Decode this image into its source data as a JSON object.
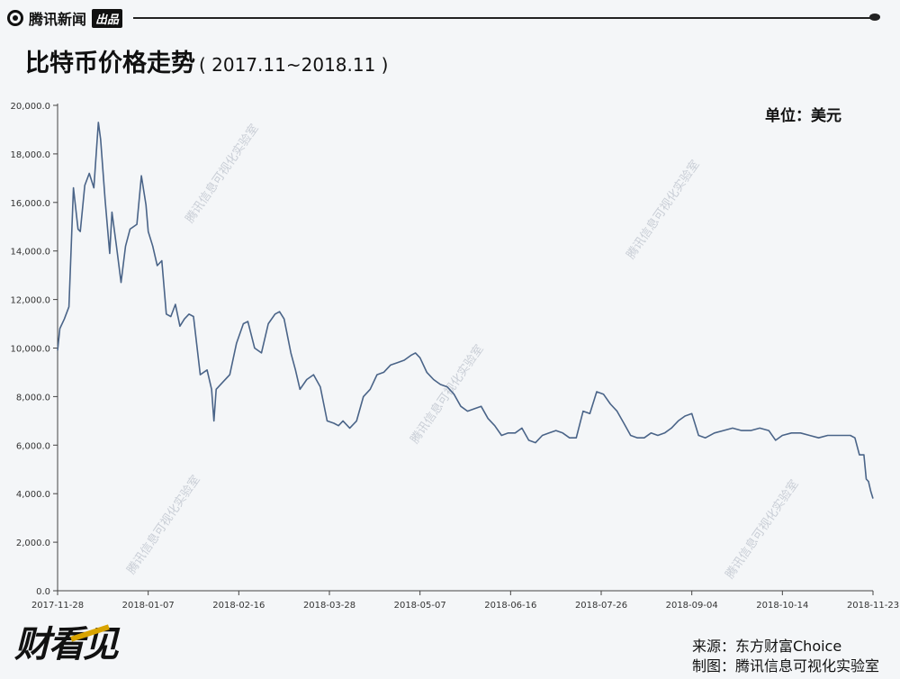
{
  "header": {
    "brand": "腾讯新闻",
    "brand_tag": "出品"
  },
  "title": {
    "main": "比特币价格走势",
    "sub": "( 2017.11~2018.11 )"
  },
  "unit_label": "单位：美元",
  "watermark_text": "腾讯信息可视化实验室",
  "footer": {
    "logo": "财看见",
    "source": "来源：东方财富Choice",
    "credit": "制图：腾讯信息可视化实验室"
  },
  "colors": {
    "line": "#4a6488",
    "axis": "#444444",
    "background": "#f4f6f8"
  },
  "chart_data": {
    "type": "line",
    "title": "比特币价格走势",
    "ylabel": "单位：美元",
    "ylim": [
      0,
      20000
    ],
    "yticks": [
      0,
      2000,
      4000,
      6000,
      8000,
      10000,
      12000,
      14000,
      16000,
      18000,
      20000
    ],
    "ytick_labels": [
      "0.0",
      "2,000.0",
      "4,000.0",
      "6,000.0",
      "8,000.0",
      "10,000.0",
      "12,000.0",
      "14,000.0",
      "16,000.0",
      "18,000.0",
      "20,000.0"
    ],
    "xlim": [
      "2017-11-28",
      "2018-11-23"
    ],
    "xticks": [
      "2017-11-28",
      "2018-01-07",
      "2018-02-16",
      "2018-03-28",
      "2018-05-07",
      "2018-06-16",
      "2018-07-26",
      "2018-09-04",
      "2018-10-14",
      "2018-11-23"
    ],
    "grid": false,
    "series": [
      {
        "x": [
          "2017-11-28",
          "2017-11-29",
          "2017-12-01",
          "2017-12-03",
          "2017-12-05",
          "2017-12-07",
          "2017-12-08",
          "2017-12-10",
          "2017-12-12",
          "2017-12-14",
          "2017-12-16",
          "2017-12-17",
          "2017-12-19",
          "2017-12-21",
          "2017-12-22",
          "2017-12-24",
          "2017-12-26",
          "2017-12-28",
          "2017-12-30",
          "2018-01-02",
          "2018-01-04",
          "2018-01-06",
          "2018-01-07",
          "2018-01-09",
          "2018-01-11",
          "2018-01-13",
          "2018-01-15",
          "2018-01-17",
          "2018-01-19",
          "2018-01-21",
          "2018-01-23",
          "2018-01-25",
          "2018-01-27",
          "2018-01-30",
          "2018-02-02",
          "2018-02-04",
          "2018-02-05",
          "2018-02-06",
          "2018-02-09",
          "2018-02-12",
          "2018-02-15",
          "2018-02-18",
          "2018-02-20",
          "2018-02-23",
          "2018-02-26",
          "2018-03-01",
          "2018-03-04",
          "2018-03-06",
          "2018-03-08",
          "2018-03-11",
          "2018-03-13",
          "2018-03-15",
          "2018-03-18",
          "2018-03-21",
          "2018-03-24",
          "2018-03-27",
          "2018-03-30",
          "2018-04-01",
          "2018-04-03",
          "2018-04-06",
          "2018-04-09",
          "2018-04-12",
          "2018-04-15",
          "2018-04-18",
          "2018-04-21",
          "2018-04-24",
          "2018-04-27",
          "2018-04-30",
          "2018-05-03",
          "2018-05-05",
          "2018-05-07",
          "2018-05-10",
          "2018-05-13",
          "2018-05-16",
          "2018-05-19",
          "2018-05-22",
          "2018-05-25",
          "2018-05-28",
          "2018-05-31",
          "2018-06-03",
          "2018-06-06",
          "2018-06-09",
          "2018-06-12",
          "2018-06-15",
          "2018-06-18",
          "2018-06-21",
          "2018-06-24",
          "2018-06-27",
          "2018-06-30",
          "2018-07-03",
          "2018-07-06",
          "2018-07-09",
          "2018-07-12",
          "2018-07-15",
          "2018-07-18",
          "2018-07-21",
          "2018-07-24",
          "2018-07-27",
          "2018-07-30",
          "2018-08-02",
          "2018-08-05",
          "2018-08-08",
          "2018-08-11",
          "2018-08-14",
          "2018-08-17",
          "2018-08-20",
          "2018-08-23",
          "2018-08-26",
          "2018-08-29",
          "2018-09-01",
          "2018-09-04",
          "2018-09-07",
          "2018-09-10",
          "2018-09-14",
          "2018-09-18",
          "2018-09-22",
          "2018-09-26",
          "2018-09-30",
          "2018-10-04",
          "2018-10-08",
          "2018-10-11",
          "2018-10-14",
          "2018-10-18",
          "2018-10-22",
          "2018-10-26",
          "2018-10-30",
          "2018-11-03",
          "2018-11-07",
          "2018-11-10",
          "2018-11-13",
          "2018-11-15",
          "2018-11-17",
          "2018-11-19",
          "2018-11-20",
          "2018-11-21",
          "2018-11-22",
          "2018-11-23"
        ],
        "y": [
          9900,
          10800,
          11200,
          11700,
          16600,
          14900,
          14800,
          16700,
          17200,
          16600,
          19300,
          18600,
          16100,
          13900,
          15600,
          14200,
          12700,
          14200,
          14900,
          15100,
          17100,
          15900,
          14800,
          14200,
          13400,
          13600,
          11400,
          11300,
          11800,
          10900,
          11200,
          11400,
          11300,
          8900,
          9100,
          8300,
          7000,
          8300,
          8600,
          8900,
          10200,
          11000,
          11100,
          10000,
          9800,
          11000,
          11400,
          11500,
          11200,
          9800,
          9100,
          8300,
          8700,
          8900,
          8400,
          7000,
          6900,
          6800,
          7000,
          6700,
          7000,
          8000,
          8300,
          8900,
          9000,
          9300,
          9400,
          9500,
          9700,
          9800,
          9600,
          9000,
          8700,
          8500,
          8400,
          8100,
          7600,
          7400,
          7500,
          7600,
          7100,
          6800,
          6400,
          6500,
          6500,
          6700,
          6200,
          6100,
          6400,
          6500,
          6600,
          6500,
          6300,
          6300,
          7400,
          7300,
          8200,
          8100,
          7700,
          7400,
          6900,
          6400,
          6300,
          6300,
          6500,
          6400,
          6500,
          6700,
          7000,
          7200,
          7300,
          6400,
          6300,
          6500,
          6600,
          6700,
          6600,
          6600,
          6700,
          6600,
          6200,
          6400,
          6500,
          6500,
          6400,
          6300,
          6400,
          6400,
          6400,
          6400,
          6300,
          5600,
          5600,
          4600,
          4500,
          4100,
          3800
        ]
      }
    ]
  }
}
